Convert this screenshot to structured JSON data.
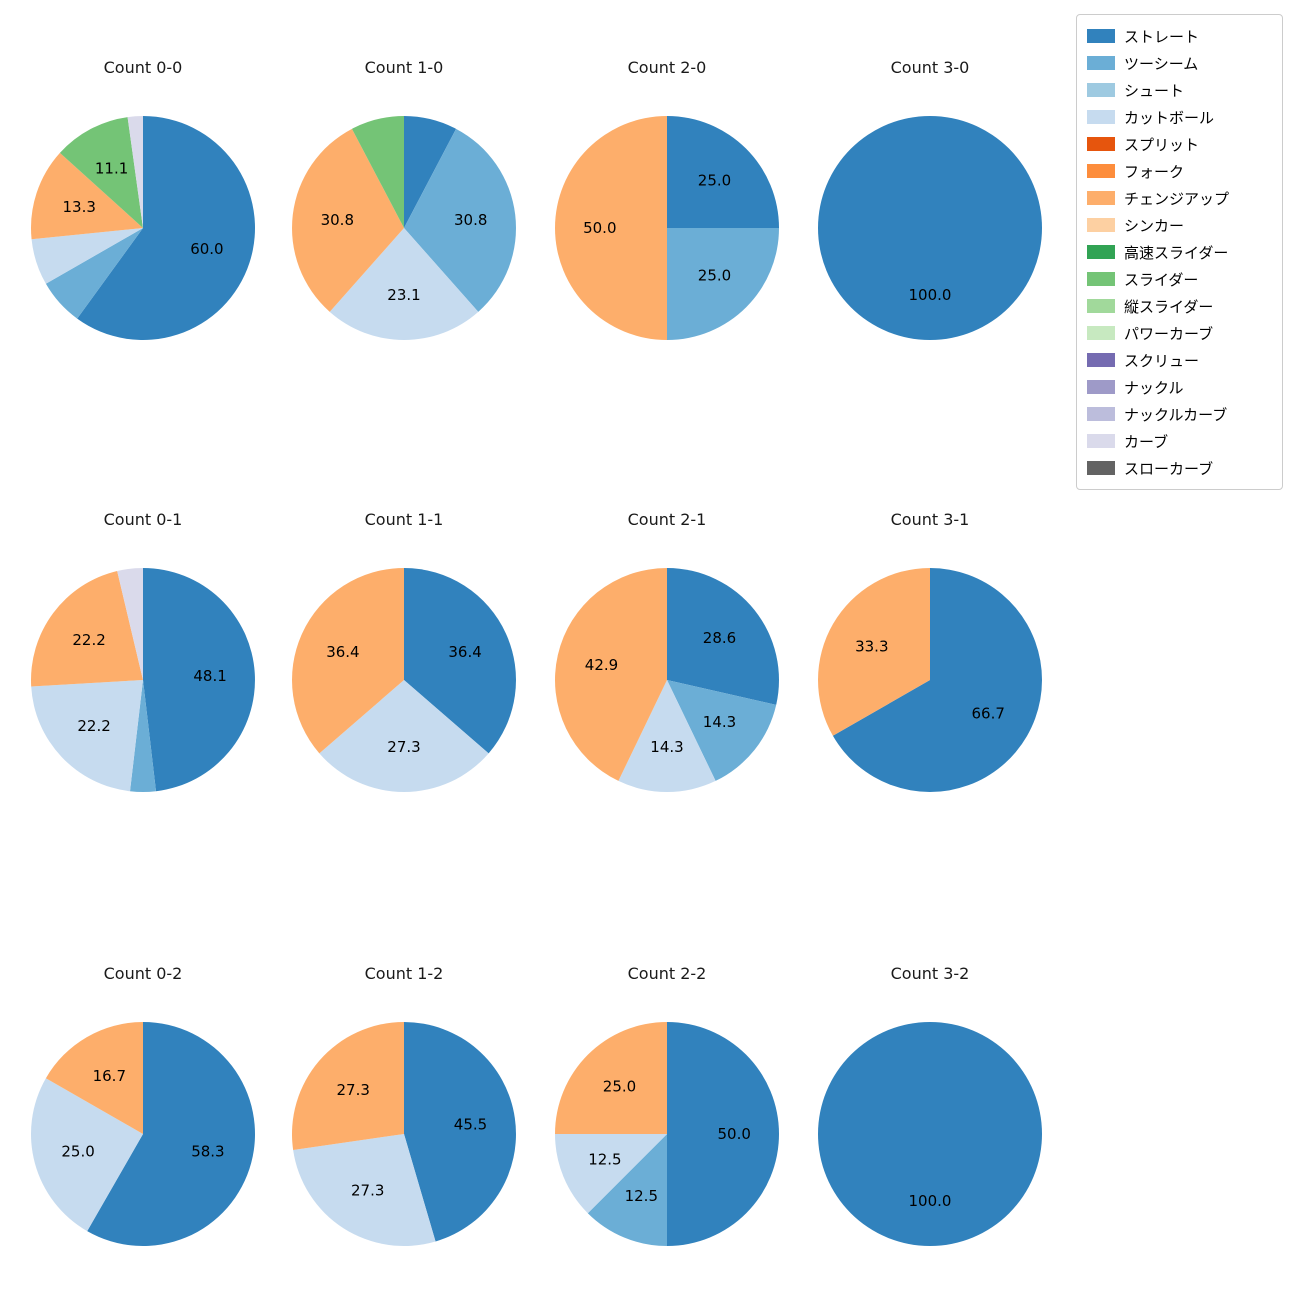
{
  "figure": {
    "background": "#ffffff"
  },
  "legend": {
    "items": [
      {
        "label": "ストレート",
        "color": "#3182bd"
      },
      {
        "label": "ツーシーム",
        "color": "#6baed6"
      },
      {
        "label": "シュート",
        "color": "#9ecae1"
      },
      {
        "label": "カットボール",
        "color": "#c6dbef"
      },
      {
        "label": "スプリット",
        "color": "#e6550d"
      },
      {
        "label": "フォーク",
        "color": "#fd8d3c"
      },
      {
        "label": "チェンジアップ",
        "color": "#fdae6b"
      },
      {
        "label": "シンカー",
        "color": "#fdd0a2"
      },
      {
        "label": "高速スライダー",
        "color": "#31a354"
      },
      {
        "label": "スライダー",
        "color": "#74c476"
      },
      {
        "label": "縦スライダー",
        "color": "#a1d99b"
      },
      {
        "label": "パワーカーブ",
        "color": "#c7e9c0"
      },
      {
        "label": "スクリュー",
        "color": "#756bb1"
      },
      {
        "label": "ナックル",
        "color": "#9e9ac8"
      },
      {
        "label": "ナックルカーブ",
        "color": "#bcbddc"
      },
      {
        "label": "カーブ",
        "color": "#dadaeb"
      },
      {
        "label": "スローカーブ",
        "color": "#636363"
      }
    ]
  },
  "chart_data": [
    {
      "type": "pie",
      "title": "Count 0-0",
      "slices": [
        {
          "name": "ストレート",
          "value": 60.0,
          "label": "60.0"
        },
        {
          "name": "ツーシーム",
          "value": 6.7,
          "label": ""
        },
        {
          "name": "カットボール",
          "value": 6.7,
          "label": ""
        },
        {
          "name": "チェンジアップ",
          "value": 13.3,
          "label": "13.3"
        },
        {
          "name": "スライダー",
          "value": 11.1,
          "label": "11.1"
        },
        {
          "name": "カーブ",
          "value": 2.2,
          "label": ""
        }
      ]
    },
    {
      "type": "pie",
      "title": "Count 1-0",
      "slices": [
        {
          "name": "ストレート",
          "value": 7.7,
          "label": ""
        },
        {
          "name": "ツーシーム",
          "value": 30.8,
          "label": "30.8"
        },
        {
          "name": "カットボール",
          "value": 23.1,
          "label": "23.1"
        },
        {
          "name": "チェンジアップ",
          "value": 30.8,
          "label": "30.8"
        },
        {
          "name": "スライダー",
          "value": 7.7,
          "label": ""
        }
      ]
    },
    {
      "type": "pie",
      "title": "Count 2-0",
      "slices": [
        {
          "name": "ストレート",
          "value": 25.0,
          "label": "25.0"
        },
        {
          "name": "ツーシーム",
          "value": 25.0,
          "label": "25.0"
        },
        {
          "name": "チェンジアップ",
          "value": 50.0,
          "label": "50.0"
        }
      ]
    },
    {
      "type": "pie",
      "title": "Count 3-0",
      "slices": [
        {
          "name": "ストレート",
          "value": 100.0,
          "label": "100.0"
        }
      ]
    },
    {
      "type": "pie",
      "title": "Count 0-1",
      "slices": [
        {
          "name": "ストレート",
          "value": 48.1,
          "label": "48.1"
        },
        {
          "name": "ツーシーム",
          "value": 3.7,
          "label": ""
        },
        {
          "name": "カットボール",
          "value": 22.2,
          "label": "22.2"
        },
        {
          "name": "チェンジアップ",
          "value": 22.2,
          "label": "22.2"
        },
        {
          "name": "カーブ",
          "value": 3.7,
          "label": ""
        }
      ]
    },
    {
      "type": "pie",
      "title": "Count 1-1",
      "slices": [
        {
          "name": "ストレート",
          "value": 36.4,
          "label": "36.4"
        },
        {
          "name": "カットボール",
          "value": 27.3,
          "label": "27.3"
        },
        {
          "name": "チェンジアップ",
          "value": 36.4,
          "label": "36.4"
        }
      ]
    },
    {
      "type": "pie",
      "title": "Count 2-1",
      "slices": [
        {
          "name": "ストレート",
          "value": 28.6,
          "label": "28.6"
        },
        {
          "name": "ツーシーム",
          "value": 14.3,
          "label": "14.3"
        },
        {
          "name": "カットボール",
          "value": 14.3,
          "label": "14.3"
        },
        {
          "name": "チェンジアップ",
          "value": 42.9,
          "label": "42.9"
        }
      ]
    },
    {
      "type": "pie",
      "title": "Count 3-1",
      "slices": [
        {
          "name": "ストレート",
          "value": 66.7,
          "label": "66.7"
        },
        {
          "name": "チェンジアップ",
          "value": 33.3,
          "label": "33.3"
        }
      ]
    },
    {
      "type": "pie",
      "title": "Count 0-2",
      "slices": [
        {
          "name": "ストレート",
          "value": 58.3,
          "label": "58.3"
        },
        {
          "name": "カットボール",
          "value": 25.0,
          "label": "25.0"
        },
        {
          "name": "チェンジアップ",
          "value": 16.7,
          "label": "16.7"
        }
      ]
    },
    {
      "type": "pie",
      "title": "Count 1-2",
      "slices": [
        {
          "name": "ストレート",
          "value": 45.5,
          "label": "45.5"
        },
        {
          "name": "カットボール",
          "value": 27.3,
          "label": "27.3"
        },
        {
          "name": "チェンジアップ",
          "value": 27.3,
          "label": "27.3"
        }
      ]
    },
    {
      "type": "pie",
      "title": "Count 2-2",
      "slices": [
        {
          "name": "ストレート",
          "value": 50.0,
          "label": "50.0"
        },
        {
          "name": "ツーシーム",
          "value": 12.5,
          "label": "12.5"
        },
        {
          "name": "カットボール",
          "value": 12.5,
          "label": "12.5"
        },
        {
          "name": "チェンジアップ",
          "value": 25.0,
          "label": "25.0"
        }
      ]
    },
    {
      "type": "pie",
      "title": "Count 3-2",
      "slices": [
        {
          "name": "ストレート",
          "value": 100.0,
          "label": "100.0"
        }
      ]
    }
  ],
  "layout": {
    "col_lefts": [
      23,
      284,
      547,
      810
    ],
    "row_tops": [
      56,
      508,
      962
    ],
    "pie_radius": 112,
    "pct_distance": 0.6
  }
}
